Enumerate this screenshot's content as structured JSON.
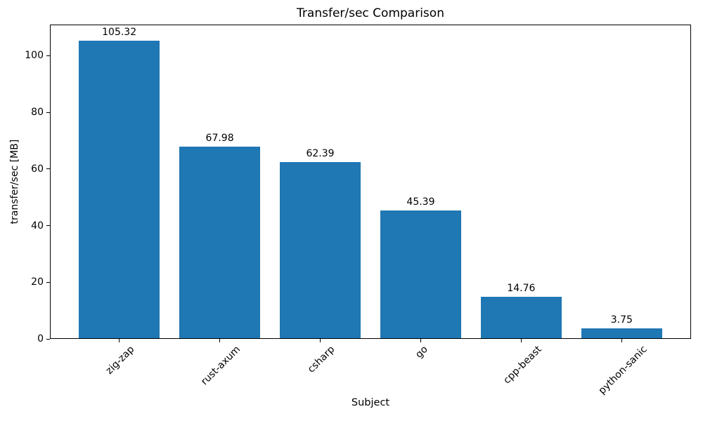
{
  "chart_data": {
    "type": "bar",
    "title": "Transfer/sec Comparison",
    "xlabel": "Subject",
    "ylabel": "transfer/sec [MB]",
    "categories": [
      "zig-zap",
      "rust-axum",
      "csharp",
      "go",
      "cpp-beast",
      "python-sanic"
    ],
    "values": [
      105.32,
      67.98,
      62.39,
      45.39,
      14.76,
      3.75
    ],
    "value_labels": [
      "105.32",
      "67.98",
      "62.39",
      "45.39",
      "14.76",
      "3.75"
    ],
    "yticks": [
      0,
      20,
      40,
      60,
      80,
      100
    ],
    "ylim": [
      0,
      111
    ],
    "xtick_rotation_deg": 45,
    "bar_width_fraction": 0.8,
    "grid": false,
    "legend": null,
    "bar_color": "#1f77b4",
    "text_color": "#000000",
    "axis_color": "#000000",
    "background_color": "#ffffff"
  }
}
